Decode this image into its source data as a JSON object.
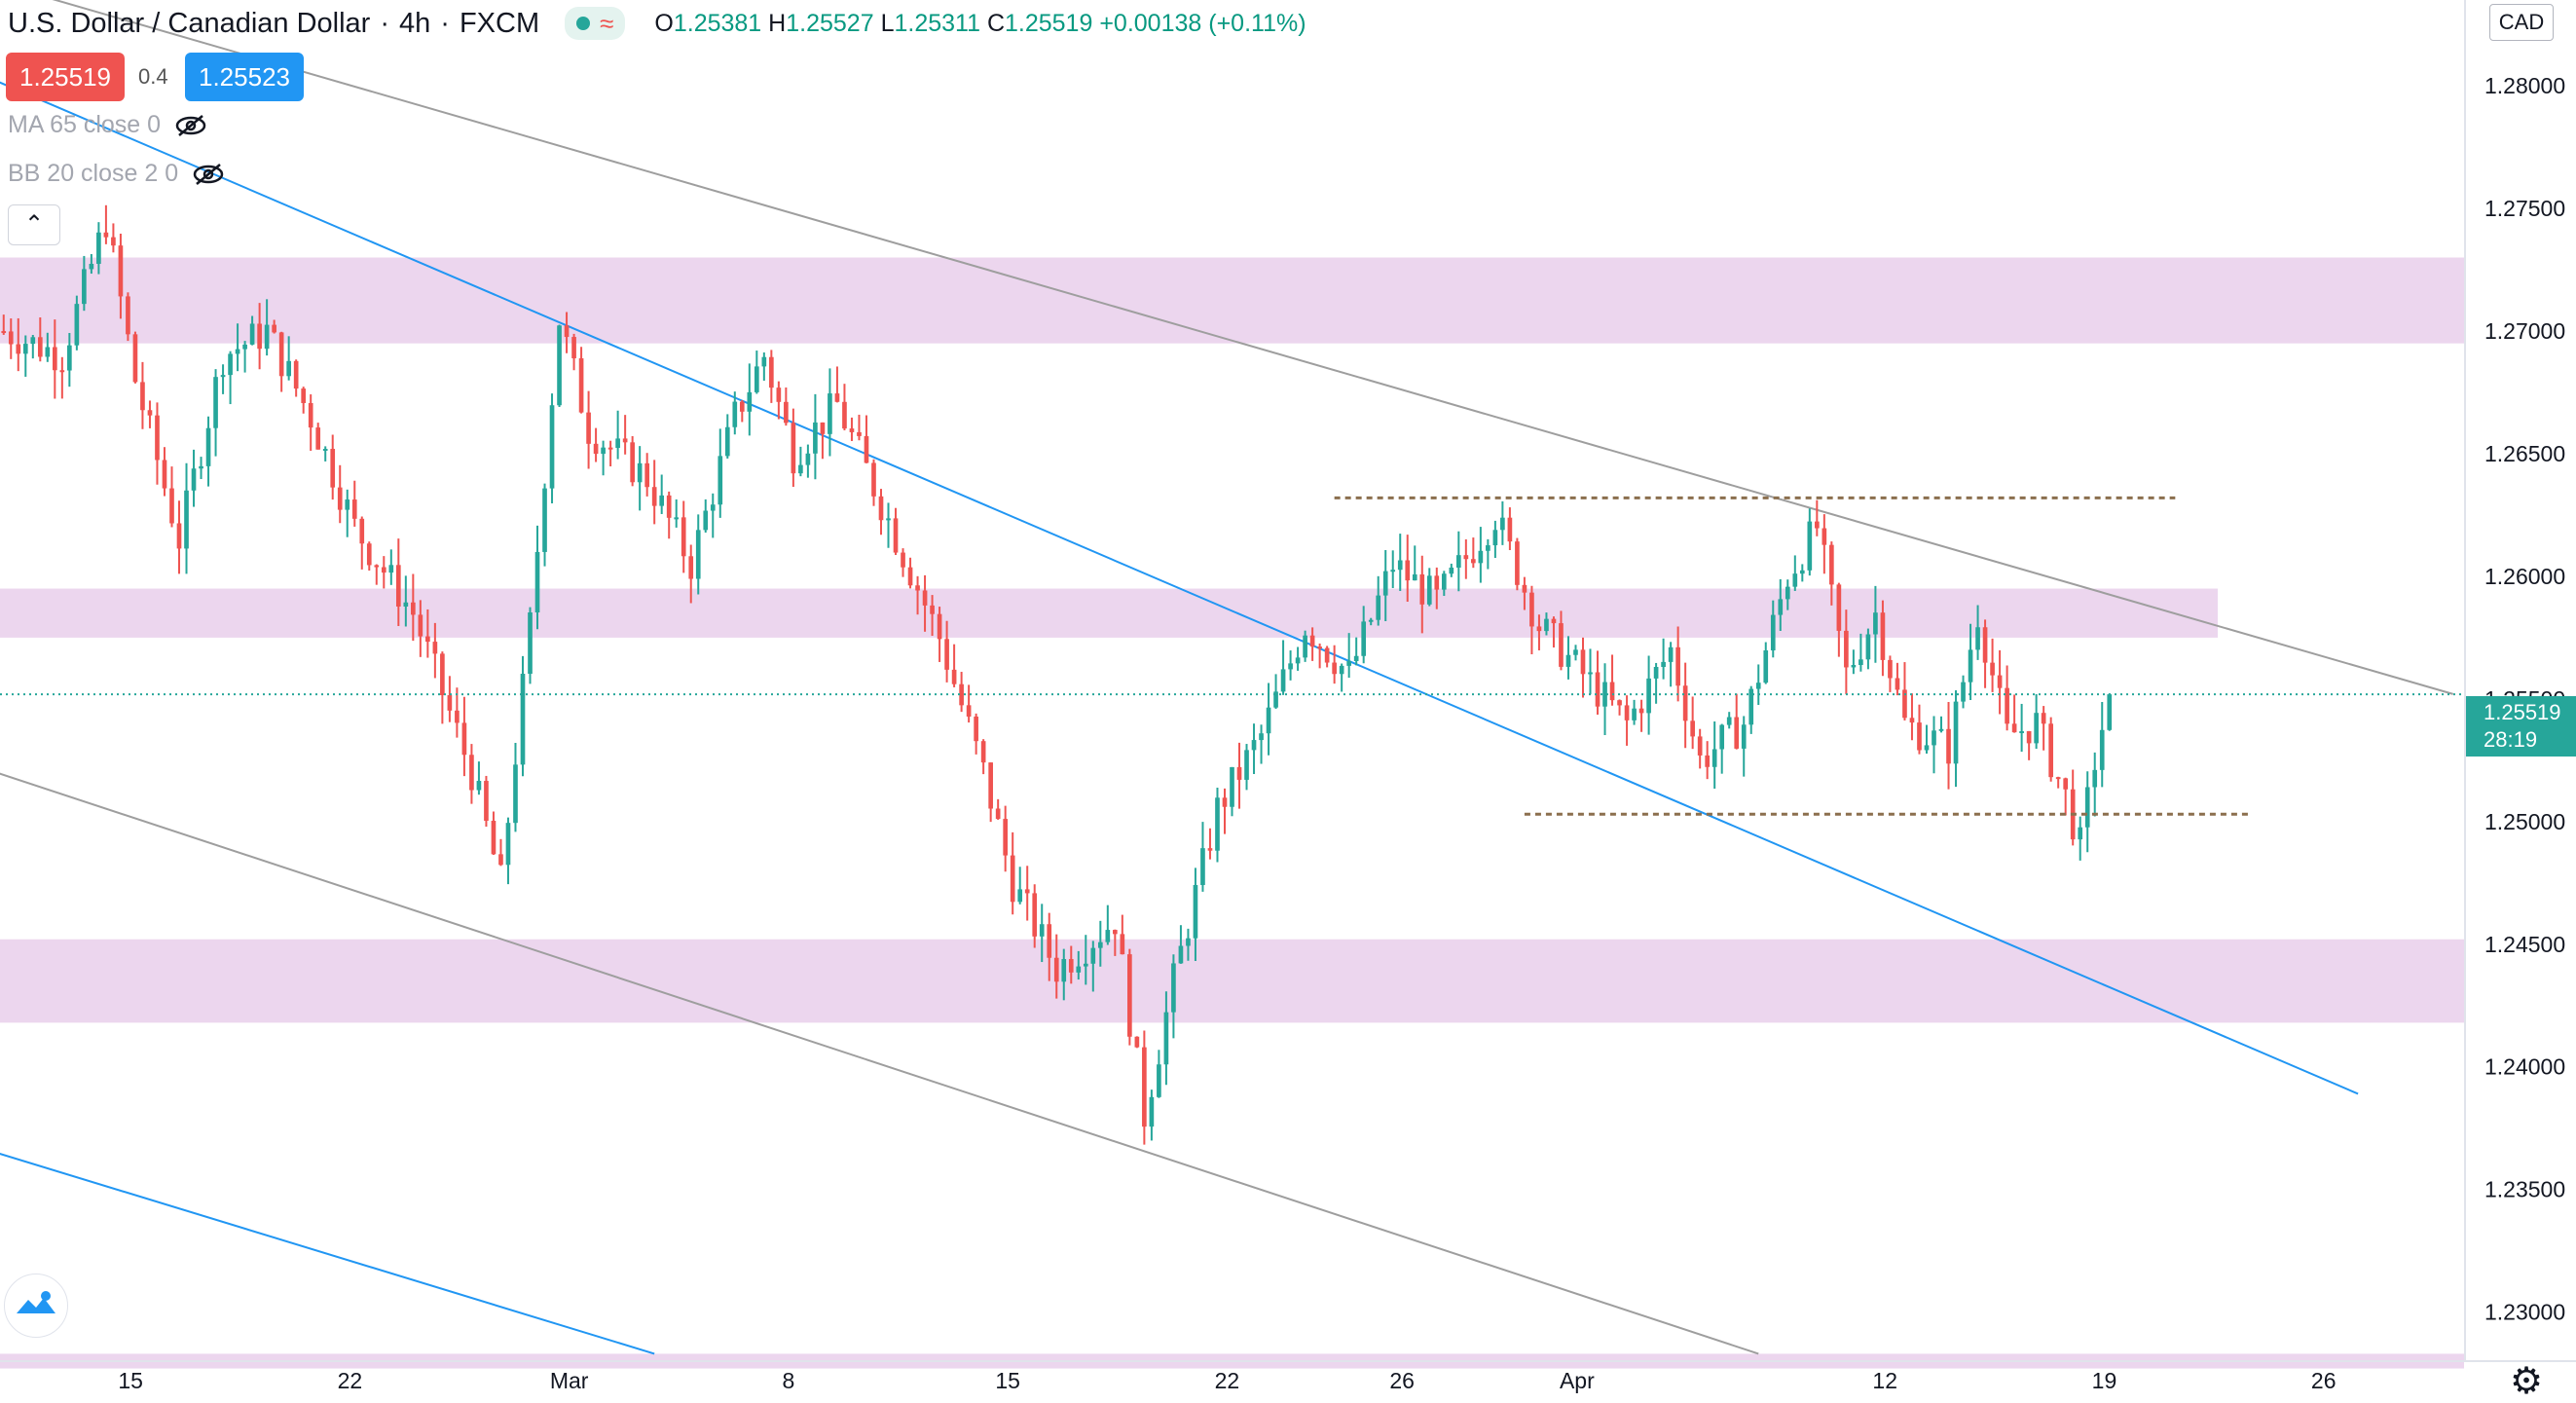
{
  "header": {
    "symbol": "U.S. Dollar / Canadian Dollar",
    "interval": "4h",
    "exchange": "FXCM",
    "ohlc": {
      "o_label": "O",
      "o": "1.25381",
      "h_label": "H",
      "h": "1.25527",
      "l_label": "L",
      "l": "1.25311",
      "c_label": "C",
      "c": "1.25519",
      "change": "+0.00138 (+0.11%)"
    }
  },
  "quote": {
    "sell": "1.25519",
    "spread": "0.4",
    "buy": "1.25523"
  },
  "indicators": [
    {
      "label": "MA 65 close 0"
    },
    {
      "label": "BB 20 close 2 0"
    }
  ],
  "axis": {
    "currency": "CAD",
    "last_price": "1.25519",
    "countdown": "28:19"
  },
  "colors": {
    "up": "#26a69a",
    "down": "#ef5350",
    "zone": "#ecd6ee",
    "blue_line": "#2196f3",
    "grey_line": "#9e9e9e",
    "level_line": "#8b6f4e",
    "accent": "#26a69a"
  },
  "icons": [
    "eye-off-icon",
    "chevron-up-icon",
    "tradingview-logo-icon",
    "gear-icon"
  ],
  "chart_data": {
    "type": "candlestick",
    "ylim": [
      1.228,
      1.2835
    ],
    "y_ticks": [
      "1.28000",
      "1.27500",
      "1.27000",
      "1.26500",
      "1.26000",
      "1.25500",
      "1.25000",
      "1.24500",
      "1.24000",
      "1.23500",
      "1.23000"
    ],
    "y_tick_values": [
      1.28,
      1.275,
      1.27,
      1.265,
      1.26,
      1.255,
      1.25,
      1.245,
      1.24,
      1.235,
      1.23
    ],
    "x_ticks": [
      {
        "label": "15",
        "pos": 0.053
      },
      {
        "label": "22",
        "pos": 0.142
      },
      {
        "label": "Mar",
        "pos": 0.231
      },
      {
        "label": "8",
        "pos": 0.32
      },
      {
        "label": "15",
        "pos": 0.409
      },
      {
        "label": "22",
        "pos": 0.498
      },
      {
        "label": "26",
        "pos": 0.569
      },
      {
        "label": "Apr",
        "pos": 0.64
      },
      {
        "label": "12",
        "pos": 0.765
      },
      {
        "label": "19",
        "pos": 0.854
      },
      {
        "label": "26",
        "pos": 0.943
      }
    ],
    "x_range_bars": 337,
    "last_price": 1.25519,
    "zones": [
      [
        1.2695,
        1.273
      ],
      [
        1.2575,
        1.2595
      ],
      [
        1.2418,
        1.2452
      ],
      [
        1.2277,
        1.2283
      ]
    ],
    "levels": [
      {
        "value": 1.2632,
        "from_bar": 182,
        "to_bar": 297
      },
      {
        "value": 1.2503,
        "from_bar": 208,
        "to_bar": 307
      }
    ],
    "trendlines": [
      {
        "color": "grey",
        "p1": [
          -1,
          1.2842
        ],
        "p2": [
          335,
          1.2552
        ]
      },
      {
        "color": "blue",
        "p1": [
          -1,
          1.2802
        ],
        "p2": [
          322,
          1.2389
        ]
      },
      {
        "color": "grey",
        "p1": [
          -1,
          1.252
        ],
        "p2": [
          240,
          1.2283
        ]
      },
      {
        "color": "blue",
        "p1": [
          -1,
          1.2365
        ],
        "p2": [
          89,
          1.2283
        ]
      }
    ],
    "close_path": [
      [
        0,
        1.27
      ],
      [
        8,
        1.269
      ],
      [
        14,
        1.2745
      ],
      [
        18,
        1.268
      ],
      [
        24,
        1.2615
      ],
      [
        30,
        1.269
      ],
      [
        36,
        1.27
      ],
      [
        42,
        1.2665
      ],
      [
        48,
        1.262
      ],
      [
        56,
        1.2585
      ],
      [
        64,
        1.252
      ],
      [
        68,
        1.2475
      ],
      [
        72,
        1.258
      ],
      [
        76,
        1.2705
      ],
      [
        80,
        1.266
      ],
      [
        88,
        1.264
      ],
      [
        94,
        1.2605
      ],
      [
        100,
        1.2665
      ],
      [
        104,
        1.269
      ],
      [
        108,
        1.265
      ],
      [
        114,
        1.267
      ],
      [
        120,
        1.263
      ],
      [
        128,
        1.2575
      ],
      [
        134,
        1.252
      ],
      [
        138,
        1.2475
      ],
      [
        144,
        1.244
      ],
      [
        152,
        1.246
      ],
      [
        156,
        1.238
      ],
      [
        160,
        1.2435
      ],
      [
        166,
        1.2505
      ],
      [
        172,
        1.2535
      ],
      [
        178,
        1.258
      ],
      [
        184,
        1.256
      ],
      [
        190,
        1.2605
      ],
      [
        196,
        1.259
      ],
      [
        204,
        1.2625
      ],
      [
        210,
        1.258
      ],
      [
        216,
        1.256
      ],
      [
        222,
        1.254
      ],
      [
        228,
        1.257
      ],
      [
        232,
        1.2525
      ],
      [
        238,
        1.254
      ],
      [
        244,
        1.26
      ],
      [
        248,
        1.262
      ],
      [
        252,
        1.256
      ],
      [
        256,
        1.2585
      ],
      [
        260,
        1.254
      ],
      [
        266,
        1.253
      ],
      [
        270,
        1.2585
      ],
      [
        274,
        1.2535
      ],
      [
        278,
        1.254
      ],
      [
        282,
        1.251
      ],
      [
        284,
        1.249
      ],
      [
        286,
        1.2525
      ],
      [
        288,
        1.2552
      ]
    ],
    "last_bar": 288
  }
}
